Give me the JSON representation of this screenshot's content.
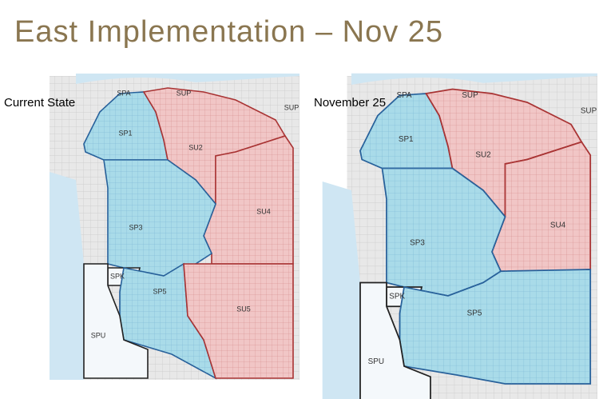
{
  "header": {
    "title": "East Implementation – Nov 25"
  },
  "maps": [
    {
      "caption": "Current State",
      "regions": [
        {
          "label": "SPA"
        },
        {
          "label": "SUP"
        },
        {
          "label": "SUP"
        },
        {
          "label": "SP1",
          "color": "#a9dbe9"
        },
        {
          "label": "SU2",
          "color": "#f1c6c6"
        },
        {
          "label": "SU4",
          "color": "#f1c6c6"
        },
        {
          "label": "SP3",
          "color": "#a9dbe9"
        },
        {
          "label": "SPK"
        },
        {
          "label": "SP5",
          "color": "#a9dbe9"
        },
        {
          "label": "SU5",
          "color": "#f1c6c6"
        },
        {
          "label": "SPU"
        }
      ]
    },
    {
      "caption": "November 25",
      "regions": [
        {
          "label": "SPA"
        },
        {
          "label": "SUP"
        },
        {
          "label": "SUP"
        },
        {
          "label": "SP1",
          "color": "#a9dbe9"
        },
        {
          "label": "SU2",
          "color": "#f1c6c6"
        },
        {
          "label": "SU4",
          "color": "#f1c6c6"
        },
        {
          "label": "SP3",
          "color": "#a9dbe9"
        },
        {
          "label": "SPK"
        },
        {
          "label": "SP5",
          "color": "#a9dbe9"
        },
        {
          "label": "SPU"
        }
      ]
    }
  ]
}
